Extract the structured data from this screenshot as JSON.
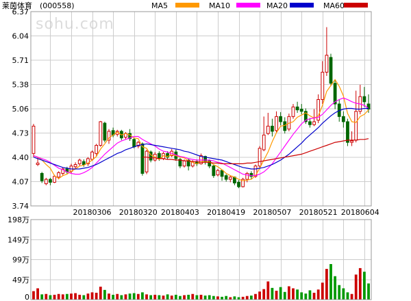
{
  "header": {
    "stock_name": "莱茵体育",
    "stock_code": "(000558)",
    "watermark": "sohu.com"
  },
  "legend": [
    {
      "label": "MA5",
      "color": "#ff9900"
    },
    {
      "label": "MA10",
      "color": "#ff00ff"
    },
    {
      "label": "MA20",
      "color": "#0000cc"
    },
    {
      "label": "MA60",
      "color": "#cc0000"
    }
  ],
  "colors": {
    "up": "#cc0000",
    "down": "#006600",
    "volume_up": "#cc0000",
    "volume_down": "#009900"
  },
  "chart_data": [
    {
      "type": "candlestick",
      "title": "",
      "ylim": [
        3.74,
        6.37
      ],
      "y_ticks": [
        "6.37",
        "6.04",
        "5.71",
        "5.38",
        "5.06",
        "4.73",
        "4.40",
        "4.07",
        "3.74"
      ],
      "x_tick_labels": [
        {
          "index": 14,
          "label": "20180306"
        },
        {
          "index": 25,
          "label": "20180320"
        },
        {
          "index": 35,
          "label": "20180403"
        },
        {
          "index": 46,
          "label": "20180419"
        },
        {
          "index": 57,
          "label": "20180507"
        },
        {
          "index": 68,
          "label": "20180521"
        },
        {
          "index": 78,
          "label": "20180604"
        }
      ],
      "candles": [
        [
          4.45,
          4.82,
          4.85,
          4.4
        ],
        [
          4.3,
          4.32,
          4.4,
          4.28
        ],
        [
          4.18,
          4.08,
          4.2,
          4.05
        ],
        [
          4.04,
          4.1,
          4.12,
          4.02
        ],
        [
          4.1,
          4.06,
          4.12,
          4.02
        ],
        [
          4.06,
          4.14,
          4.16,
          4.05
        ],
        [
          4.13,
          4.19,
          4.21,
          4.1
        ],
        [
          4.18,
          4.24,
          4.26,
          4.15
        ],
        [
          4.24,
          4.2,
          4.27,
          4.17
        ],
        [
          4.21,
          4.28,
          4.31,
          4.18
        ],
        [
          4.27,
          4.3,
          4.33,
          4.24
        ],
        [
          4.31,
          4.36,
          4.38,
          4.28
        ],
        [
          4.34,
          4.3,
          4.37,
          4.27
        ],
        [
          4.31,
          4.38,
          4.4,
          4.28
        ],
        [
          4.37,
          4.47,
          4.49,
          4.35
        ],
        [
          4.45,
          4.56,
          4.58,
          4.42
        ],
        [
          4.56,
          4.88,
          4.89,
          4.54
        ],
        [
          4.86,
          4.63,
          4.88,
          4.6
        ],
        [
          4.63,
          4.75,
          4.78,
          4.58
        ],
        [
          4.76,
          4.7,
          4.8,
          4.67
        ],
        [
          4.71,
          4.75,
          4.77,
          4.68
        ],
        [
          4.75,
          4.66,
          4.77,
          4.63
        ],
        [
          4.67,
          4.72,
          4.74,
          4.64
        ],
        [
          4.72,
          4.65,
          4.78,
          4.62
        ],
        [
          4.64,
          4.54,
          4.66,
          4.52
        ],
        [
          4.55,
          4.6,
          4.62,
          4.52
        ],
        [
          4.58,
          4.18,
          4.6,
          4.15
        ],
        [
          4.2,
          4.48,
          4.5,
          4.17
        ],
        [
          4.47,
          4.36,
          4.49,
          4.33
        ],
        [
          4.36,
          4.44,
          4.47,
          4.34
        ],
        [
          4.45,
          4.38,
          4.48,
          4.35
        ],
        [
          4.38,
          4.45,
          4.47,
          4.36
        ],
        [
          4.45,
          4.4,
          4.48,
          4.37
        ],
        [
          4.42,
          4.48,
          4.51,
          4.4
        ],
        [
          4.47,
          4.38,
          4.5,
          4.35
        ],
        [
          4.37,
          4.28,
          4.39,
          4.25
        ],
        [
          4.28,
          4.35,
          4.37,
          4.26
        ],
        [
          4.36,
          4.28,
          4.38,
          4.22
        ],
        [
          4.28,
          4.34,
          4.36,
          4.26
        ],
        [
          4.34,
          4.31,
          4.37,
          4.28
        ],
        [
          4.31,
          4.42,
          4.45,
          4.3
        ],
        [
          4.41,
          4.34,
          4.42,
          4.3
        ],
        [
          4.35,
          4.28,
          4.37,
          4.25
        ],
        [
          4.28,
          4.15,
          4.3,
          4.12
        ],
        [
          4.16,
          4.22,
          4.24,
          4.14
        ],
        [
          4.22,
          4.14,
          4.23,
          4.08
        ],
        [
          4.15,
          4.1,
          4.17,
          4.07
        ],
        [
          4.1,
          4.13,
          4.15,
          4.06
        ],
        [
          4.13,
          4.05,
          4.14,
          4.02
        ],
        [
          4.06,
          4.0,
          4.09,
          3.98
        ],
        [
          4.0,
          4.1,
          4.12,
          3.99
        ],
        [
          4.1,
          4.18,
          4.2,
          4.06
        ],
        [
          4.18,
          4.14,
          4.21,
          4.1
        ],
        [
          4.14,
          4.28,
          4.3,
          4.12
        ],
        [
          4.28,
          4.52,
          4.55,
          4.26
        ],
        [
          4.5,
          4.7,
          4.95,
          4.48
        ],
        [
          4.72,
          4.82,
          5.0,
          4.7
        ],
        [
          4.82,
          4.75,
          4.92,
          4.68
        ],
        [
          4.76,
          4.95,
          5.02,
          4.73
        ],
        [
          4.95,
          4.88,
          5.01,
          4.83
        ],
        [
          4.88,
          4.76,
          4.94,
          4.72
        ],
        [
          4.78,
          4.95,
          4.99,
          4.75
        ],
        [
          4.95,
          5.08,
          5.12,
          4.92
        ],
        [
          5.08,
          5.04,
          5.15,
          5.0
        ],
        [
          5.05,
          5.02,
          5.12,
          4.98
        ],
        [
          5.02,
          4.88,
          5.06,
          4.85
        ],
        [
          4.88,
          4.84,
          4.93,
          4.8
        ],
        [
          4.84,
          4.88,
          5.05,
          4.82
        ],
        [
          4.9,
          5.18,
          5.25,
          4.86
        ],
        [
          5.18,
          5.55,
          5.7,
          5.12
        ],
        [
          5.55,
          5.78,
          6.16,
          5.5
        ],
        [
          5.75,
          5.4,
          5.8,
          5.36
        ],
        [
          5.4,
          5.12,
          5.45,
          5.05
        ],
        [
          5.12,
          4.95,
          5.18,
          4.88
        ],
        [
          4.95,
          4.88,
          5.02,
          4.8
        ],
        [
          4.88,
          4.6,
          4.92,
          4.55
        ],
        [
          4.6,
          4.62,
          4.75,
          4.55
        ],
        [
          4.63,
          5.02,
          5.3,
          4.6
        ],
        [
          5.02,
          5.22,
          5.38,
          4.98
        ],
        [
          5.22,
          5.15,
          5.35,
          5.08
        ],
        [
          5.12,
          5.05,
          5.25,
          5.0
        ]
      ],
      "ma_series": [
        {
          "name": "MA5",
          "values": [
            4.42,
            4.4,
            4.36,
            4.3,
            4.25,
            4.15,
            4.11,
            4.15,
            4.17,
            4.21,
            4.24,
            4.28,
            4.29,
            4.32,
            4.36,
            4.41,
            4.51,
            4.58,
            4.66,
            4.7,
            4.74,
            4.7,
            4.72,
            4.7,
            4.66,
            4.65,
            4.54,
            4.52,
            4.43,
            4.4,
            4.37,
            4.42,
            4.41,
            4.43,
            4.42,
            4.4,
            4.39,
            4.35,
            4.33,
            4.31,
            4.34,
            4.34,
            4.34,
            4.3,
            4.27,
            4.23,
            4.18,
            4.15,
            4.13,
            4.1,
            4.08,
            4.09,
            4.1,
            4.15,
            4.25,
            4.36,
            4.47,
            4.61,
            4.73,
            4.82,
            4.83,
            4.86,
            4.88,
            4.94,
            4.97,
            5.0,
            4.96,
            4.93,
            4.96,
            5.1,
            5.29,
            5.37,
            5.45,
            5.36,
            5.23,
            4.99,
            4.88,
            4.87,
            4.95,
            4.98,
            5.04
          ]
        },
        {
          "name": "MA10",
          "values": [
            4.42,
            4.4,
            4.38,
            4.36,
            4.33,
            4.29,
            4.25,
            4.23,
            4.2,
            4.18,
            4.17,
            4.17,
            4.19,
            4.22,
            4.26,
            4.32,
            4.38,
            4.44,
            4.49,
            4.54,
            4.59,
            4.62,
            4.64,
            4.66,
            4.68,
            4.68,
            4.64,
            4.61,
            4.58,
            4.55,
            4.51,
            4.48,
            4.47,
            4.45,
            4.43,
            4.41,
            4.4,
            4.38,
            4.37,
            4.36,
            4.36,
            4.36,
            4.36,
            4.35,
            4.33,
            4.32,
            4.29,
            4.26,
            4.23,
            4.2,
            4.17,
            4.16,
            4.15,
            4.15,
            4.17,
            4.2,
            4.25,
            4.31,
            4.39,
            4.47,
            4.55,
            4.63,
            4.71,
            4.78,
            4.85,
            4.9,
            4.92,
            4.93,
            4.94,
            4.98,
            5.04,
            5.1,
            5.15,
            5.18,
            5.2,
            5.18,
            5.15,
            5.13,
            5.12,
            5.1,
            5.06
          ]
        },
        {
          "name": "MA20",
          "values": [
            4.4,
            4.38,
            4.36,
            4.34,
            4.32,
            4.3,
            4.28,
            4.26,
            4.25,
            4.24,
            4.24,
            4.24,
            4.25,
            4.26,
            4.28,
            4.3,
            4.33,
            4.36,
            4.39,
            4.42,
            4.45,
            4.47,
            4.5,
            4.52,
            4.54,
            4.56,
            4.57,
            4.58,
            4.57,
            4.56,
            4.55,
            4.54,
            4.53,
            4.52,
            4.51,
            4.5,
            4.48,
            4.47,
            4.45,
            4.43,
            4.41,
            4.4,
            4.39,
            4.38,
            4.37,
            4.36,
            4.34,
            4.32,
            4.3,
            4.28,
            4.26,
            4.25,
            4.24,
            4.24,
            4.25,
            4.26,
            4.28,
            4.3,
            4.33,
            4.36,
            4.4,
            4.44,
            4.49,
            4.54,
            4.59,
            4.65,
            4.7,
            4.75,
            4.8,
            4.86,
            4.91,
            4.96,
            5.0,
            5.03,
            5.05,
            5.06,
            5.06,
            5.05,
            5.05,
            5.06,
            5.06
          ]
        },
        {
          "name": "MA60",
          "values": [
            null,
            null,
            null,
            null,
            null,
            null,
            null,
            null,
            null,
            null,
            null,
            null,
            null,
            null,
            null,
            null,
            null,
            null,
            null,
            null,
            null,
            null,
            null,
            null,
            null,
            null,
            4.4,
            4.4,
            4.39,
            4.39,
            4.38,
            4.38,
            4.37,
            4.37,
            4.36,
            4.36,
            4.35,
            4.35,
            4.34,
            4.34,
            4.33,
            4.33,
            4.33,
            4.32,
            4.32,
            4.31,
            4.31,
            4.31,
            4.31,
            4.31,
            4.31,
            4.32,
            4.32,
            4.33,
            4.34,
            4.35,
            4.36,
            4.37,
            4.38,
            4.39,
            4.4,
            4.41,
            4.42,
            4.43,
            4.44,
            4.46,
            4.48,
            4.5,
            4.52,
            4.54,
            4.56,
            4.58,
            4.6,
            4.61,
            4.62,
            4.63,
            4.63,
            4.63,
            4.64,
            4.64,
            4.65
          ]
        }
      ]
    },
    {
      "type": "bar",
      "title": "",
      "ylabel": "",
      "ylim": [
        0,
        198
      ],
      "y_ticks": [
        "198万",
        "149万",
        "99万",
        "49万",
        "0"
      ],
      "values": [
        21,
        28,
        13,
        14,
        11,
        12,
        14,
        13,
        14,
        15,
        16,
        12,
        11,
        15,
        18,
        17,
        32,
        24,
        15,
        12,
        14,
        11,
        13,
        15,
        16,
        14,
        18,
        13,
        11,
        12,
        11,
        10,
        13,
        10,
        12,
        9,
        11,
        12,
        14,
        11,
        12,
        10,
        11,
        9,
        8,
        7,
        9,
        6,
        8,
        6,
        7,
        9,
        10,
        14,
        20,
        26,
        45,
        29,
        22,
        31,
        19,
        33,
        28,
        25,
        18,
        15,
        23,
        17,
        25,
        42,
        76,
        88,
        58,
        36,
        28,
        18,
        14,
        62,
        78,
        69,
        40
      ]
    }
  ]
}
